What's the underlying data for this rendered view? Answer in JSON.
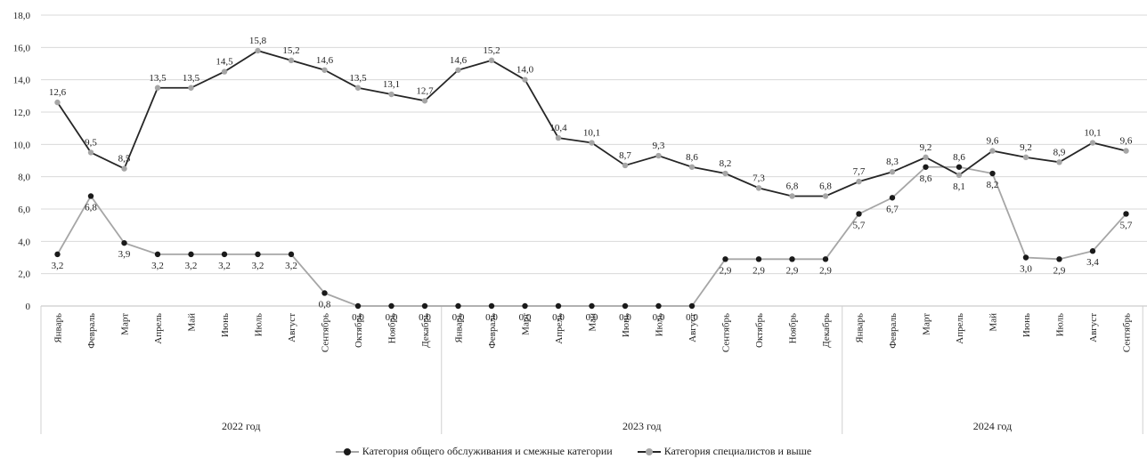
{
  "chart_data": {
    "type": "line",
    "title": "",
    "ylim": [
      0,
      18
    ],
    "yticks": [
      "0",
      "2,0",
      "4,0",
      "6,0",
      "8,0",
      "10,0",
      "12,0",
      "14,0",
      "16,0",
      "18,0"
    ],
    "grid": true,
    "legend_position": "bottom",
    "categories": [
      "Январь",
      "Февраль",
      "Март",
      "Апрель",
      "Май",
      "Июнь",
      "Июль",
      "Август",
      "Сентябрь",
      "Октябрь",
      "Ноябрь",
      "Декабрь",
      "Январь",
      "Февраль",
      "Март",
      "Апрель",
      "Май",
      "Июнь",
      "Июль",
      "Август",
      "Сентябрь",
      "Октябрь",
      "Ноябрь",
      "Декабрь",
      "Январь",
      "Февраль",
      "Март",
      "Апрель",
      "Май",
      "Июнь",
      "Июль",
      "Август",
      "Сентябрь"
    ],
    "groups": [
      {
        "label": "2022 год",
        "count": 12
      },
      {
        "label": "2023 год",
        "count": 12
      },
      {
        "label": "2024 год",
        "count": 9
      }
    ],
    "series": [
      {
        "name": "Категория общего обслуживания и смежные категории",
        "line_color": "#a6a6a6",
        "marker_color": "#1a1a1a",
        "values": [
          3.2,
          6.8,
          3.9,
          3.2,
          3.2,
          3.2,
          3.2,
          3.2,
          0.8,
          0.0,
          0.0,
          0.0,
          0.0,
          0.0,
          0.0,
          0.0,
          0.0,
          0.0,
          0.0,
          0.0,
          2.9,
          2.9,
          2.9,
          2.9,
          5.7,
          6.7,
          8.6,
          8.6,
          8.2,
          3.0,
          2.9,
          3.4,
          5.7
        ],
        "labels": [
          "3,2",
          "6,8",
          "3,9",
          "3,2",
          "3,2",
          "3,2",
          "3,2",
          "3,2",
          "0,8",
          "0,0",
          "0,0",
          "0,0",
          "0,0",
          "0,0",
          "0,0",
          "0,0",
          "0,0",
          "0,0",
          "0,0",
          "0,0",
          "2,9",
          "2,9",
          "2,9",
          "2,9",
          "5,7",
          "6,7",
          "8,6",
          "8,6",
          "8,2",
          "3,0",
          "2,9",
          "3,4",
          "5,7"
        ]
      },
      {
        "name": "Категория специалистов и выше",
        "line_color": "#262626",
        "marker_color": "#a6a6a6",
        "values": [
          12.6,
          9.5,
          8.5,
          13.5,
          13.5,
          14.5,
          15.8,
          15.2,
          14.6,
          13.5,
          13.1,
          12.7,
          14.6,
          15.2,
          14.0,
          10.4,
          10.1,
          8.7,
          9.3,
          8.6,
          8.2,
          7.3,
          6.8,
          6.8,
          7.7,
          8.3,
          9.2,
          8.1,
          9.6,
          9.2,
          8.9,
          10.1,
          9.6
        ],
        "labels": [
          "12,6",
          "9,5",
          "8,5",
          "13,5",
          "13,5",
          "14,5",
          "15,8",
          "15,2",
          "14,6",
          "13,5",
          "13,1",
          "12,7",
          "14,6",
          "15,2",
          "14,0",
          "10,4",
          "10,1",
          "8,7",
          "9,3",
          "8,6",
          "8,2",
          "7,3",
          "6,8",
          "6,8",
          "7,7",
          "8,3",
          "9,2",
          "8,1",
          "9,6",
          "9,2",
          "8,9",
          "10,1",
          "9,6"
        ]
      }
    ]
  },
  "legend": {
    "items": [
      {
        "label": "Категория общего обслуживания и смежные категории",
        "line_color": "#a6a6a6",
        "marker_color": "#1a1a1a"
      },
      {
        "label": "Категория специалистов и выше",
        "line_color": "#262626",
        "marker_color": "#a6a6a6"
      }
    ]
  }
}
